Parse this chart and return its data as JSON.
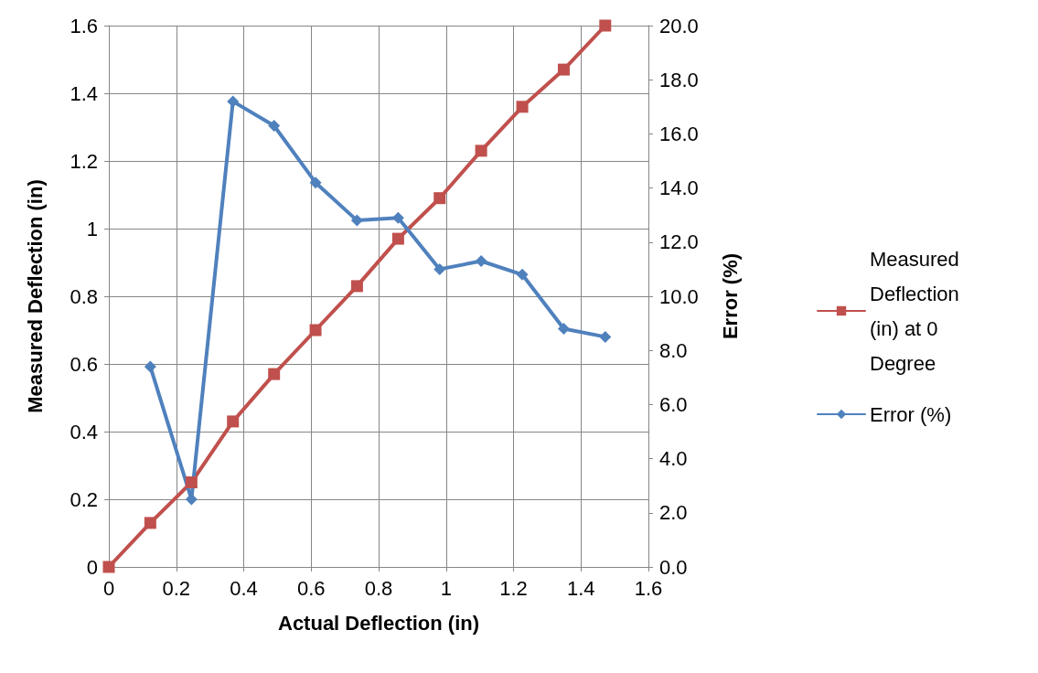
{
  "chart_data": {
    "type": "line",
    "xlabel": "Actual Deflection (in)",
    "ylabel": "Measured Deflection (in)",
    "y2label": "Error (%)",
    "xlim": [
      0,
      1.6
    ],
    "xticks": [
      0,
      0.2,
      0.4,
      0.6,
      0.8,
      1,
      1.2,
      1.4,
      1.6
    ],
    "ylim": [
      0,
      1.6
    ],
    "yticks": [
      0,
      0.2,
      0.4,
      0.6,
      0.8,
      1,
      1.2,
      1.4,
      1.6
    ],
    "y2lim": [
      0,
      20
    ],
    "y2ticks": [
      {
        "value": 0,
        "label": "0.0"
      },
      {
        "value": 2,
        "label": "2.0"
      },
      {
        "value": 4,
        "label": "4.0"
      },
      {
        "value": 6,
        "label": "6.0"
      },
      {
        "value": 8,
        "label": "8.0"
      },
      {
        "value": 10,
        "label": "10.0"
      },
      {
        "value": 12,
        "label": "12.0"
      },
      {
        "value": 14,
        "label": "14.0"
      },
      {
        "value": 16,
        "label": "16.0"
      },
      {
        "value": 18,
        "label": "18.0"
      },
      {
        "value": 20,
        "label": "20.0"
      }
    ],
    "grid": true,
    "legend": "right",
    "line_style": "solid",
    "series": [
      {
        "name": "Measured Deflection (in) at 0 Degree",
        "color": "#c0504d",
        "marker": "square",
        "x": [
          0,
          0.123,
          0.245,
          0.368,
          0.49,
          0.613,
          0.736,
          0.858,
          0.981,
          1.104,
          1.226,
          1.349,
          1.472
        ],
        "values": [
          0,
          0.13,
          0.25,
          0.43,
          0.57,
          0.7,
          0.83,
          0.97,
          1.09,
          1.23,
          1.36,
          1.47,
          1.6
        ]
      },
      {
        "name": "Error (%)",
        "color": "#4f81bd",
        "marker": "diamond",
        "axis": "y2",
        "x": [
          0.123,
          0.245,
          0.368,
          0.49,
          0.613,
          0.736,
          0.858,
          0.981,
          1.104,
          1.226,
          1.349,
          1.472
        ],
        "values": [
          7.4,
          2.5,
          17.2,
          16.3,
          14.2,
          12.8,
          12.9,
          11.0,
          11.3,
          10.8,
          8.8,
          8.5
        ]
      }
    ]
  }
}
